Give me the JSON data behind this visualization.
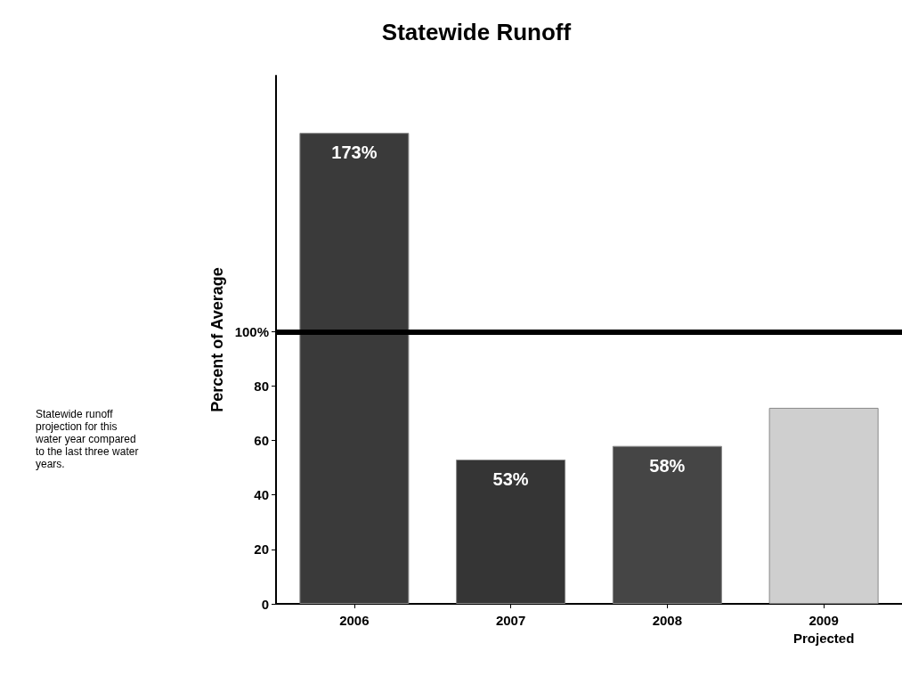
{
  "chart_data": {
    "type": "bar",
    "title": "Statewide Runoff",
    "ylabel": "Percent of Average",
    "categories": [
      "2006",
      "2007",
      "2008",
      "2009\nProjected"
    ],
    "values": [
      173,
      53,
      58,
      72
    ],
    "colors": [
      "#3a3a3a",
      "#353535",
      "#454545",
      "#cfcfcf"
    ],
    "value_labels": [
      "173%",
      "53%",
      "58%",
      null
    ],
    "ylim": [
      0,
      194
    ],
    "yticks": [
      0,
      20,
      40,
      60,
      80,
      {
        "value": 100,
        "label": "100%"
      }
    ],
    "ref_lines": [
      {
        "axis": "y",
        "value": 100,
        "color": "#000000"
      }
    ],
    "grid": false,
    "annotations": [
      "Statewide runoff projection for this water year compared to the last three water years."
    ]
  }
}
